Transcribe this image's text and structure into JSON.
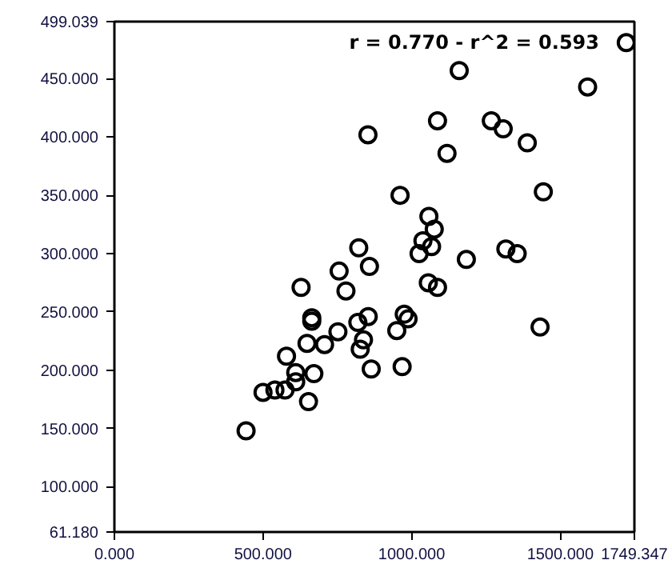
{
  "chart_data": {
    "type": "scatter",
    "marker": "circle",
    "grid": false,
    "annotations": [
      "r = 0.770 - r^2 = 0.593"
    ],
    "xlim": [
      0,
      1749.347
    ],
    "ylim": [
      61.18,
      499.039
    ],
    "xticks": [
      {
        "value": 0,
        "label": "0.000"
      },
      {
        "value": 500,
        "label": "500.000"
      },
      {
        "value": 1000,
        "label": "1000.000"
      },
      {
        "value": 1500,
        "label": "1500.000"
      },
      {
        "value": 1749.347,
        "label": "1749.347"
      }
    ],
    "yticks": [
      {
        "value": 61.18,
        "label": "61.180"
      },
      {
        "value": 100,
        "label": "100.000"
      },
      {
        "value": 150,
        "label": "150.000"
      },
      {
        "value": 200,
        "label": "200.000"
      },
      {
        "value": 250,
        "label": "250.000"
      },
      {
        "value": 300,
        "label": "300.000"
      },
      {
        "value": 350,
        "label": "350.000"
      },
      {
        "value": 400,
        "label": "400.000"
      },
      {
        "value": 450,
        "label": "450.000"
      },
      {
        "value": 499.039,
        "label": "499.039"
      }
    ],
    "series": [
      {
        "color": "#000000",
        "x": [
          1160,
          1592,
          1722,
          853,
          1087,
          1268,
          1308,
          1389,
          1119,
          961,
          1443,
          1058,
          1076,
          1038,
          1067,
          1025,
          822,
          1184,
          1317,
          1355,
          756,
          858,
          628,
          779,
          1056,
          1087,
          664,
          664,
          854,
          819,
          975,
          988,
          950,
          752,
          1432,
          648,
          707,
          838,
          827,
          579,
          610,
          671,
          610,
          864,
          968,
          500,
          540,
          574,
          653,
          443
        ],
        "values": [
          457,
          443,
          481,
          402,
          414,
          414,
          407,
          395,
          386,
          350,
          353,
          332,
          321,
          311,
          306,
          300,
          305,
          295,
          304,
          300,
          285,
          289,
          271,
          268,
          275,
          271,
          245,
          242,
          246,
          241,
          248,
          244,
          234,
          233,
          237,
          223,
          222,
          226,
          218,
          212,
          198,
          197,
          190,
          201,
          203,
          181,
          183,
          183,
          173,
          148
        ]
      }
    ]
  }
}
